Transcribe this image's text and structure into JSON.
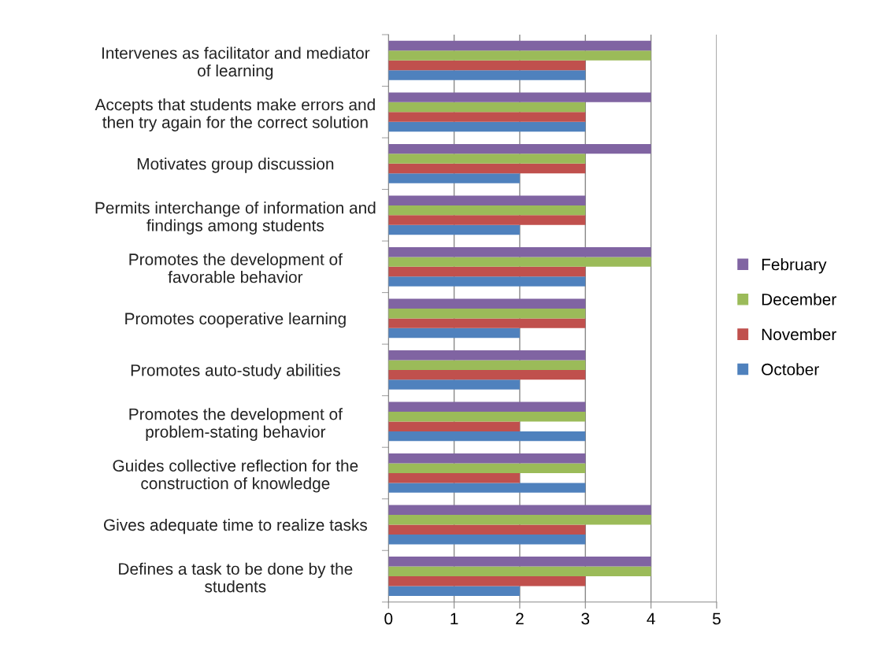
{
  "chart_data": {
    "type": "bar",
    "orientation": "horizontal",
    "categories": [
      "Intervenes as facilitator and mediator\nof learning",
      "Accepts that students make errors and\nthen try again for the correct solution",
      "Motivates group discussion",
      "Permits interchange of information and\nfindings among students",
      "Promotes the development of\nfavorable behavior",
      "Promotes cooperative learning",
      "Promotes auto-study abilities",
      "Promotes the development of\nproblem-stating behavior",
      "Guides collective reflection for the\nconstruction of knowledge",
      "Gives adequate time to realize tasks",
      "Defines a task to be done by the\nstudents"
    ],
    "series": [
      {
        "name": "October",
        "color": "#4f81bd",
        "values": [
          3,
          3,
          2,
          2,
          3,
          2,
          2,
          3,
          3,
          3,
          2
        ]
      },
      {
        "name": "November",
        "color": "#c0504d",
        "values": [
          3,
          3,
          3,
          3,
          3,
          3,
          3,
          2,
          2,
          3,
          3
        ]
      },
      {
        "name": "December",
        "color": "#9bbb59",
        "values": [
          4,
          3,
          3,
          3,
          4,
          3,
          3,
          3,
          3,
          4,
          4
        ]
      },
      {
        "name": "February",
        "color": "#8064a2",
        "values": [
          4,
          4,
          4,
          3,
          4,
          3,
          3,
          3,
          3,
          4,
          4
        ]
      }
    ],
    "xlim": [
      0,
      5
    ],
    "xticks": [
      0,
      1,
      2,
      3,
      4,
      5
    ],
    "grid": "x",
    "legend": "right"
  }
}
